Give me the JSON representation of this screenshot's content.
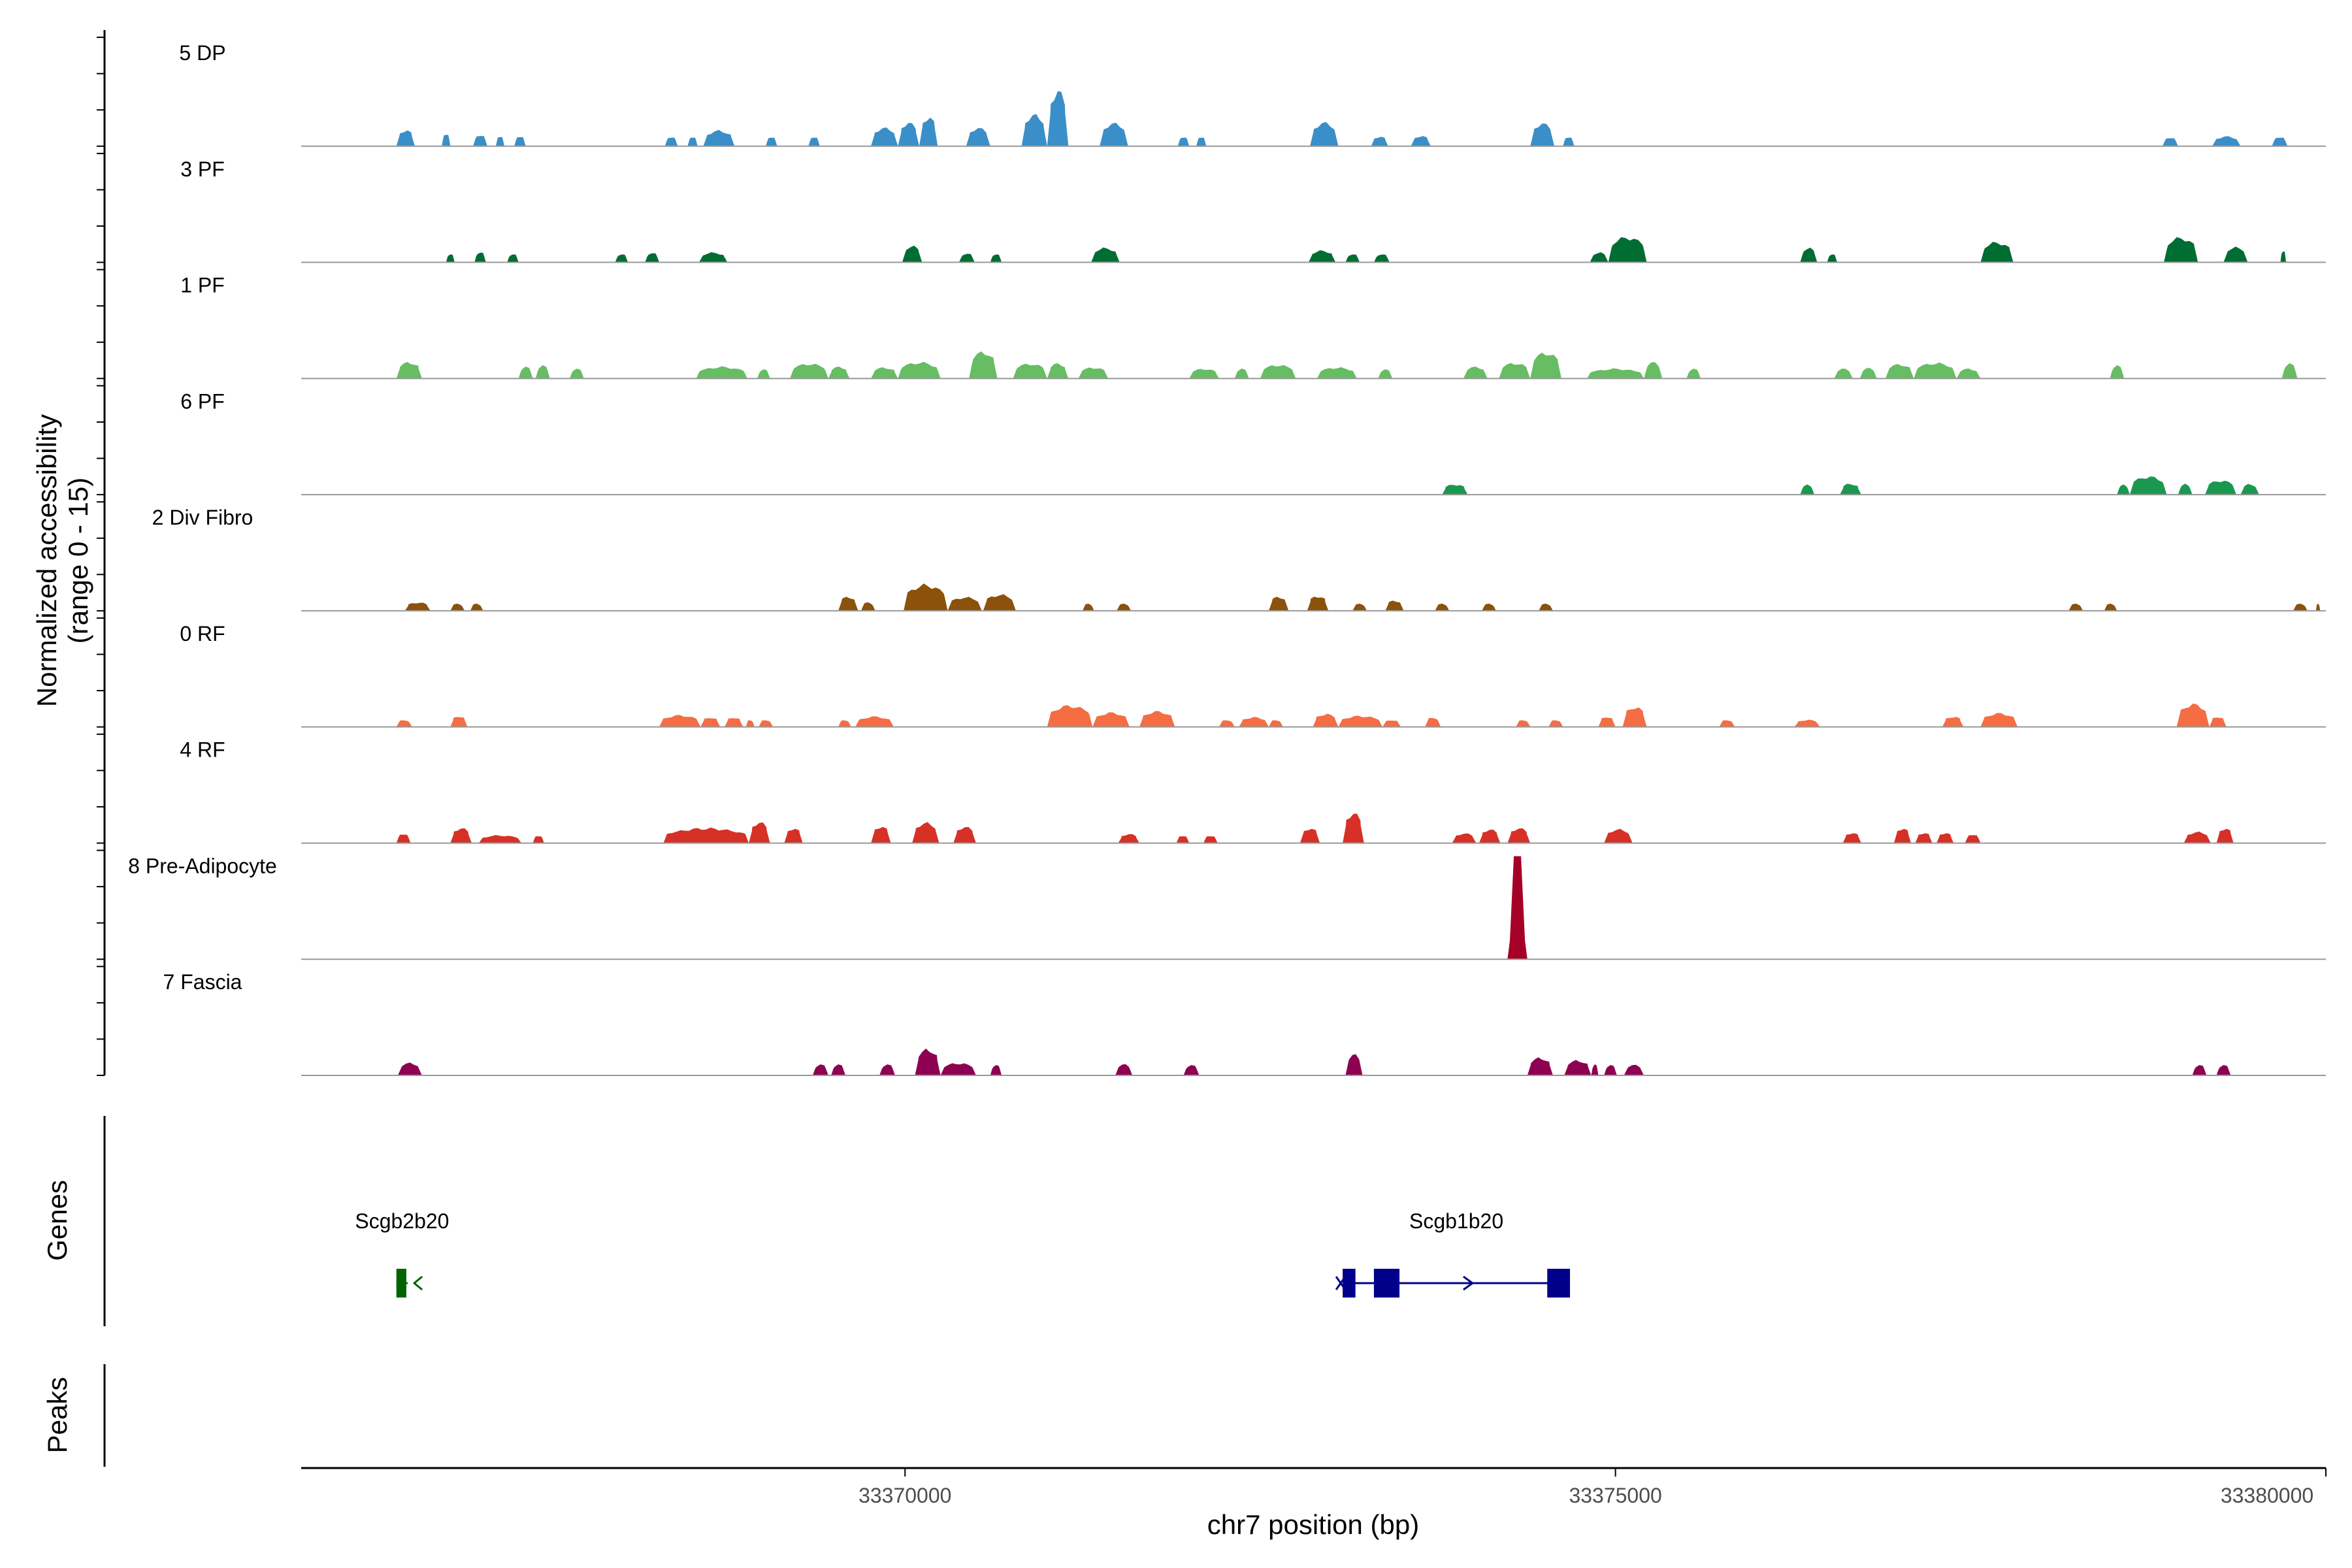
{
  "chart_data": {
    "type": "area",
    "ylabel": "Normalized accessibility",
    "ylabel_range": "(range 0 - 15)",
    "xlabel": "chr7 position (bp)",
    "xlim": [
      33365750,
      33380000
    ],
    "ylim": [
      0,
      15
    ],
    "x_ticks": [
      {
        "value": 33370000,
        "label": "33370000"
      },
      {
        "value": 33375000,
        "label": "33375000"
      },
      {
        "value": 33380000,
        "label": "33380000"
      }
    ],
    "series": [
      {
        "name": "5 DP",
        "color": "#3a8fc8",
        "peaks": [
          [
            33366420,
            33366550,
            2.5
          ],
          [
            33366740,
            33366800,
            2
          ],
          [
            33366960,
            33367060,
            1.8
          ],
          [
            33367120,
            33367180,
            1.6
          ],
          [
            33367250,
            33367330,
            1.6
          ],
          [
            33368310,
            33368400,
            1.5
          ],
          [
            33368470,
            33368540,
            1.5
          ],
          [
            33368580,
            33368800,
            2.4
          ],
          [
            33369020,
            33369100,
            1.5
          ],
          [
            33369320,
            33369400,
            1.5
          ],
          [
            33369760,
            33369950,
            2.8
          ],
          [
            33369950,
            33370100,
            3.6
          ],
          [
            33370100,
            33370230,
            4.5
          ],
          [
            33370430,
            33370600,
            2.8
          ],
          [
            33370820,
            33371000,
            4.8
          ],
          [
            33371000,
            33371150,
            8.5
          ],
          [
            33371370,
            33371570,
            3.5
          ],
          [
            33371920,
            33372000,
            1.5
          ],
          [
            33372050,
            33372120,
            1.5
          ],
          [
            33372850,
            33373050,
            3.6
          ],
          [
            33373280,
            33373400,
            1.5
          ],
          [
            33373560,
            33373700,
            1.6
          ],
          [
            33374400,
            33374570,
            3.5
          ],
          [
            33374630,
            33374710,
            1.5
          ],
          [
            33378850,
            33378960,
            1.4
          ],
          [
            33379200,
            33379400,
            1.5
          ],
          [
            33379620,
            33379730,
            1.5
          ]
        ]
      },
      {
        "name": "3 PF",
        "color": "#006d33",
        "peaks": [
          [
            33366770,
            33366830,
            1.3
          ],
          [
            33366970,
            33367050,
            1.6
          ],
          [
            33367200,
            33367280,
            1.3
          ],
          [
            33367960,
            33368050,
            1.3
          ],
          [
            33368170,
            33368270,
            1.5
          ],
          [
            33368550,
            33368750,
            1.5
          ],
          [
            33369980,
            33370120,
            2.5
          ],
          [
            33370380,
            33370490,
            1.4
          ],
          [
            33370600,
            33370680,
            1.3
          ],
          [
            33371310,
            33371510,
            2.2
          ],
          [
            33372840,
            33373030,
            1.8
          ],
          [
            33373100,
            33373200,
            1.3
          ],
          [
            33373300,
            33373410,
            1.3
          ],
          [
            33374820,
            33374950,
            1.5
          ],
          [
            33374950,
            33375220,
            3.9
          ],
          [
            33376300,
            33376420,
            2.2
          ],
          [
            33376490,
            33376560,
            1.3
          ],
          [
            33377570,
            33377800,
            3.1
          ],
          [
            33378860,
            33379100,
            3.8
          ],
          [
            33379280,
            33379450,
            2.3
          ],
          [
            33379680,
            33379720,
            1.8
          ]
        ]
      },
      {
        "name": "1 PF",
        "color": "#66bd63",
        "peaks": [
          [
            33366420,
            33366600,
            2.5
          ],
          [
            33367280,
            33367380,
            1.8
          ],
          [
            33367400,
            33367500,
            2
          ],
          [
            33367640,
            33367740,
            1.5
          ],
          [
            33368530,
            33368890,
            1.8
          ],
          [
            33368960,
            33369050,
            1.4
          ],
          [
            33369190,
            33369460,
            2.3
          ],
          [
            33369460,
            33369610,
            1.8
          ],
          [
            33369760,
            33369950,
            1.7
          ],
          [
            33369950,
            33370250,
            2.5
          ],
          [
            33370450,
            33370650,
            4.1
          ],
          [
            33370760,
            33371000,
            2.3
          ],
          [
            33371000,
            33371150,
            2.3
          ],
          [
            33371220,
            33371430,
            1.7
          ],
          [
            33372000,
            33372210,
            1.5
          ],
          [
            33372320,
            33372420,
            1.5
          ],
          [
            33372500,
            33372750,
            2.1
          ],
          [
            33372900,
            33373180,
            1.7
          ],
          [
            33373330,
            33373430,
            1.4
          ],
          [
            33373930,
            33374100,
            1.8
          ],
          [
            33374180,
            33374400,
            2.4
          ],
          [
            33374400,
            33374620,
            4.0
          ],
          [
            33374800,
            33375200,
            1.5
          ],
          [
            33375200,
            33375330,
            2.5
          ],
          [
            33375500,
            33375600,
            1.5
          ],
          [
            33376540,
            33376670,
            1.5
          ],
          [
            33376720,
            33376840,
            1.6
          ],
          [
            33376900,
            33377100,
            2.2
          ],
          [
            33377100,
            33377400,
            2.4
          ],
          [
            33377400,
            33377570,
            1.5
          ],
          [
            33378480,
            33378580,
            2.0
          ],
          [
            33379690,
            33379800,
            2.3
          ]
        ]
      },
      {
        "name": "6 PF",
        "color": "#1a9850",
        "peaks": [
          [
            33373780,
            33373960,
            1.6
          ],
          [
            33376300,
            33376400,
            1.5
          ],
          [
            33376580,
            33376730,
            1.7
          ],
          [
            33378530,
            33378620,
            1.5
          ],
          [
            33378620,
            33378880,
            2.8
          ],
          [
            33378960,
            33379060,
            1.6
          ],
          [
            33379150,
            33379370,
            2.2
          ],
          [
            33379400,
            33379530,
            1.6
          ]
        ]
      },
      {
        "name": "2 Div Fibro",
        "color": "#8c510a",
        "peaks": [
          [
            33366480,
            33366660,
            1.3
          ],
          [
            33366800,
            33366900,
            1.1
          ],
          [
            33366940,
            33367030,
            1.1
          ],
          [
            33369530,
            33369670,
            2.2
          ],
          [
            33369690,
            33369790,
            1.3
          ],
          [
            33369990,
            33370300,
            4.0
          ],
          [
            33370300,
            33370540,
            2.1
          ],
          [
            33370550,
            33370780,
            2.5
          ],
          [
            33371250,
            33371330,
            1.1
          ],
          [
            33371490,
            33371590,
            1.1
          ],
          [
            33372560,
            33372700,
            2.2
          ],
          [
            33372830,
            33372980,
            2.3
          ],
          [
            33373150,
            33373250,
            1.1
          ],
          [
            33373380,
            33373510,
            1.6
          ],
          [
            33373730,
            33373830,
            1.1
          ],
          [
            33374060,
            33374160,
            1.1
          ],
          [
            33374460,
            33374560,
            1.1
          ],
          [
            33378190,
            33378290,
            1.1
          ],
          [
            33378440,
            33378530,
            1.1
          ],
          [
            33379770,
            33379870,
            1.1
          ],
          [
            33379930,
            33379960,
            1.1
          ]
        ]
      },
      {
        "name": "0 RF",
        "color": "#f46d43",
        "peaks": [
          [
            33366420,
            33366530,
            1.1
          ],
          [
            33366800,
            33366920,
            1.7
          ],
          [
            33368270,
            33368560,
            1.8
          ],
          [
            33368560,
            33368700,
            1.5
          ],
          [
            33368730,
            33368860,
            1.5
          ],
          [
            33368880,
            33368940,
            1.1
          ],
          [
            33368970,
            33369070,
            1.1
          ],
          [
            33369530,
            33369620,
            1.1
          ],
          [
            33369650,
            33369920,
            1.6
          ],
          [
            33371000,
            33371320,
            3.3
          ],
          [
            33371320,
            33371580,
            2.2
          ],
          [
            33371650,
            33371900,
            2.4
          ],
          [
            33372210,
            33372320,
            1.1
          ],
          [
            33372350,
            33372560,
            1.5
          ],
          [
            33372560,
            33372660,
            1.1
          ],
          [
            33372870,
            33373050,
            2.0
          ],
          [
            33373050,
            33373360,
            1.7
          ],
          [
            33373360,
            33373490,
            1.1
          ],
          [
            33373660,
            33373770,
            1.5
          ],
          [
            33374300,
            33374400,
            1.1
          ],
          [
            33374530,
            33374630,
            1.1
          ],
          [
            33374880,
            33375000,
            1.6
          ],
          [
            33375050,
            33375220,
            3.1
          ],
          [
            33375730,
            33375840,
            1.1
          ],
          [
            33376260,
            33376440,
            1.1
          ],
          [
            33377300,
            33377450,
            1.6
          ],
          [
            33377570,
            33377830,
            2.1
          ],
          [
            33378950,
            33379180,
            3.5
          ],
          [
            33379180,
            33379300,
            1.6
          ]
        ]
      },
      {
        "name": "4 RF",
        "color": "#d73027",
        "peaks": [
          [
            33366420,
            33366520,
            1.5
          ],
          [
            33366800,
            33366950,
            2.3
          ],
          [
            33367000,
            33367300,
            1.2
          ],
          [
            33367380,
            33367460,
            1.2
          ],
          [
            33368300,
            33368900,
            2.3
          ],
          [
            33368900,
            33369050,
            3.2
          ],
          [
            33369150,
            33369280,
            2.3
          ],
          [
            33369760,
            33369900,
            2.6
          ],
          [
            33370050,
            33370240,
            3.1
          ],
          [
            33370340,
            33370500,
            2.5
          ],
          [
            33371500,
            33371650,
            1.4
          ],
          [
            33371910,
            33372000,
            1.2
          ],
          [
            33372100,
            33372200,
            1.2
          ],
          [
            33372780,
            33372920,
            2.3
          ],
          [
            33373080,
            33373230,
            4.6
          ],
          [
            33373850,
            33374020,
            1.5
          ],
          [
            33374040,
            33374190,
            2.1
          ],
          [
            33374240,
            33374400,
            2.3
          ],
          [
            33374920,
            33375120,
            2.1
          ],
          [
            33376600,
            33376730,
            1.6
          ],
          [
            33376960,
            33377080,
            2.3
          ],
          [
            33377110,
            33377230,
            1.6
          ],
          [
            33377260,
            33377380,
            1.6
          ],
          [
            33377460,
            33377570,
            1.4
          ],
          [
            33379000,
            33379190,
            1.7
          ],
          [
            33379230,
            33379350,
            2.3
          ]
        ]
      },
      {
        "name": "8 Pre-Adipocyte",
        "color": "#a50026",
        "peaks": [
          [
            33374240,
            33374380,
            15
          ]
        ]
      },
      {
        "name": "7 Fascia",
        "color": "#8e0152",
        "peaks": [
          [
            33366430,
            33366600,
            1.9
          ],
          [
            33369350,
            33369460,
            1.7
          ],
          [
            33369480,
            33369580,
            1.7
          ],
          [
            33369820,
            33369930,
            1.7
          ],
          [
            33370070,
            33370250,
            4.0
          ],
          [
            33370250,
            33370500,
            1.9
          ],
          [
            33370600,
            33370680,
            1.6
          ],
          [
            33371480,
            33371600,
            1.7
          ],
          [
            33371960,
            33372070,
            1.6
          ],
          [
            33373100,
            33373220,
            3.2
          ],
          [
            33374380,
            33374560,
            2.7
          ],
          [
            33374640,
            33374830,
            2.3
          ],
          [
            33374830,
            33374880,
            1.7
          ],
          [
            33374920,
            33375010,
            1.6
          ],
          [
            33375060,
            33375200,
            1.6
          ],
          [
            33379060,
            33379160,
            1.6
          ],
          [
            33379230,
            33379330,
            1.6
          ]
        ]
      }
    ],
    "genes": [
      {
        "name": "Scgb2b20",
        "color": "#006400",
        "start": 33366420,
        "end": 33366500,
        "strand": "-",
        "exons": [
          [
            33366420,
            33366490
          ]
        ]
      },
      {
        "name": "Scgb1b20",
        "color": "#00008b",
        "start": 33373080,
        "end": 33374680,
        "strand": "+",
        "exons": [
          [
            33373080,
            33373170
          ],
          [
            33373300,
            33373480
          ],
          [
            33374520,
            33374680
          ]
        ]
      }
    ],
    "gene_track_label": "Genes",
    "peak_track_label": "Peaks"
  }
}
